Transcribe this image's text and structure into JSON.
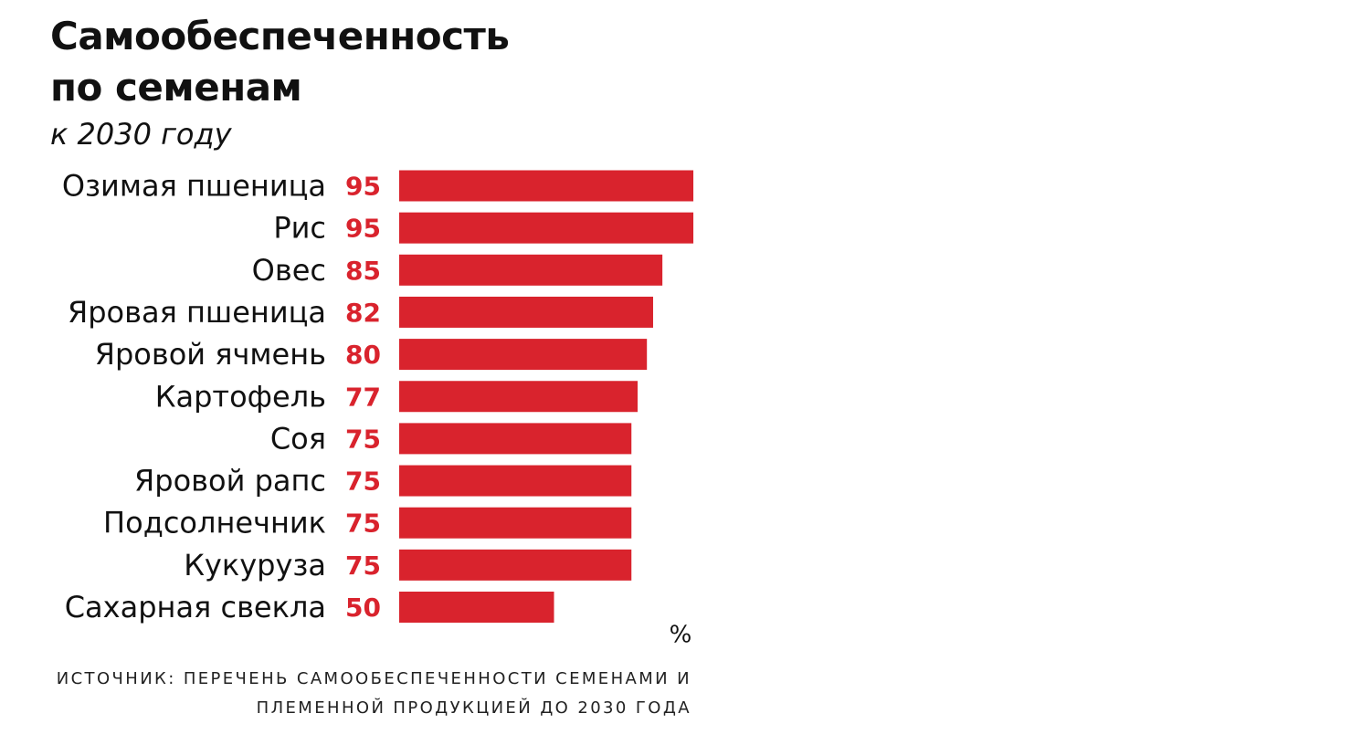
{
  "chart_data": {
    "type": "bar",
    "orientation": "horizontal",
    "title": "Самообеспеченность по семенам",
    "subtitle": "к 2030 году",
    "categories": [
      "Озимая пшеница",
      "Рис",
      "Овес",
      "Яровая пшеница",
      "Яровой ячмень",
      "Картофель",
      "Соя",
      "Яровой рапс",
      "Подсолнечник",
      "Кукуруза",
      "Сахарная свекла"
    ],
    "values": [
      95,
      95,
      85,
      82,
      80,
      77,
      75,
      75,
      75,
      75,
      50
    ],
    "color": "#d9232d",
    "unit_label": "%",
    "source": "ИСТОЧНИК: ПЕРЕЧЕНЬ САМООБЕСПЕЧЕННОСТИ СЕМЕНАМИ И ПЛЕМЕННОЙ ПРОДУКЦИЕЙ ДО 2030 ГОДА"
  }
}
